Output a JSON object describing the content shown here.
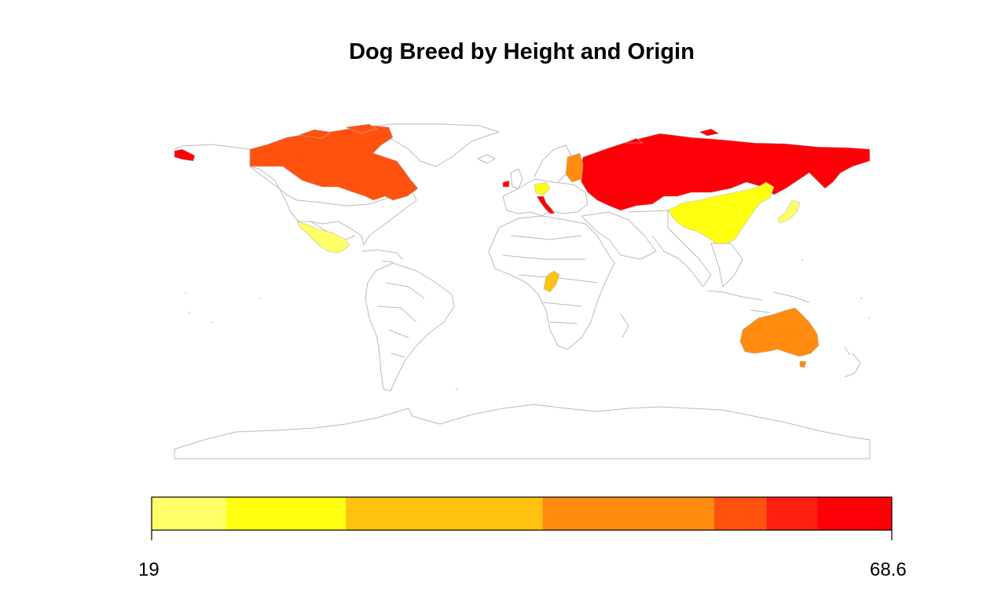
{
  "title": "Dog Breed by Height and Origin",
  "legend": {
    "min_label": "19",
    "max_label": "68.6",
    "min": 19,
    "max": 68.6,
    "bins": [
      {
        "from": 19.0,
        "to": 24.0,
        "color": "#FFFF66"
      },
      {
        "from": 24.0,
        "to": 32.0,
        "color": "#FFFF0F"
      },
      {
        "from": 32.0,
        "to": 45.2,
        "color": "#FFC30F"
      },
      {
        "from": 45.2,
        "to": 56.7,
        "color": "#FF8C0F"
      },
      {
        "from": 56.7,
        "to": 60.2,
        "color": "#FF520F"
      },
      {
        "from": 60.2,
        "to": 63.6,
        "color": "#FF1E0F"
      },
      {
        "from": 63.6,
        "to": 68.6,
        "color": "#FF0008"
      }
    ]
  },
  "countries": [
    {
      "name": "Russia",
      "color": "#FF0008"
    },
    {
      "name": "Italy",
      "color": "#FF0008"
    },
    {
      "name": "Ireland",
      "color": "#FF0008"
    },
    {
      "name": "Canada",
      "color": "#FF520F"
    },
    {
      "name": "Finland",
      "color": "#FF8C0F"
    },
    {
      "name": "Australia",
      "color": "#FF8C0F"
    },
    {
      "name": "Congo",
      "color": "#FFC30F"
    },
    {
      "name": "Germany",
      "color": "#FFFF0F"
    },
    {
      "name": "China",
      "color": "#FFFF0F"
    },
    {
      "name": "Mexico",
      "color": "#FFFF66"
    },
    {
      "name": "Japan",
      "color": "#FFFF66"
    }
  ],
  "colors": {
    "border": "#bbbbbb",
    "frame": "#000000"
  }
}
